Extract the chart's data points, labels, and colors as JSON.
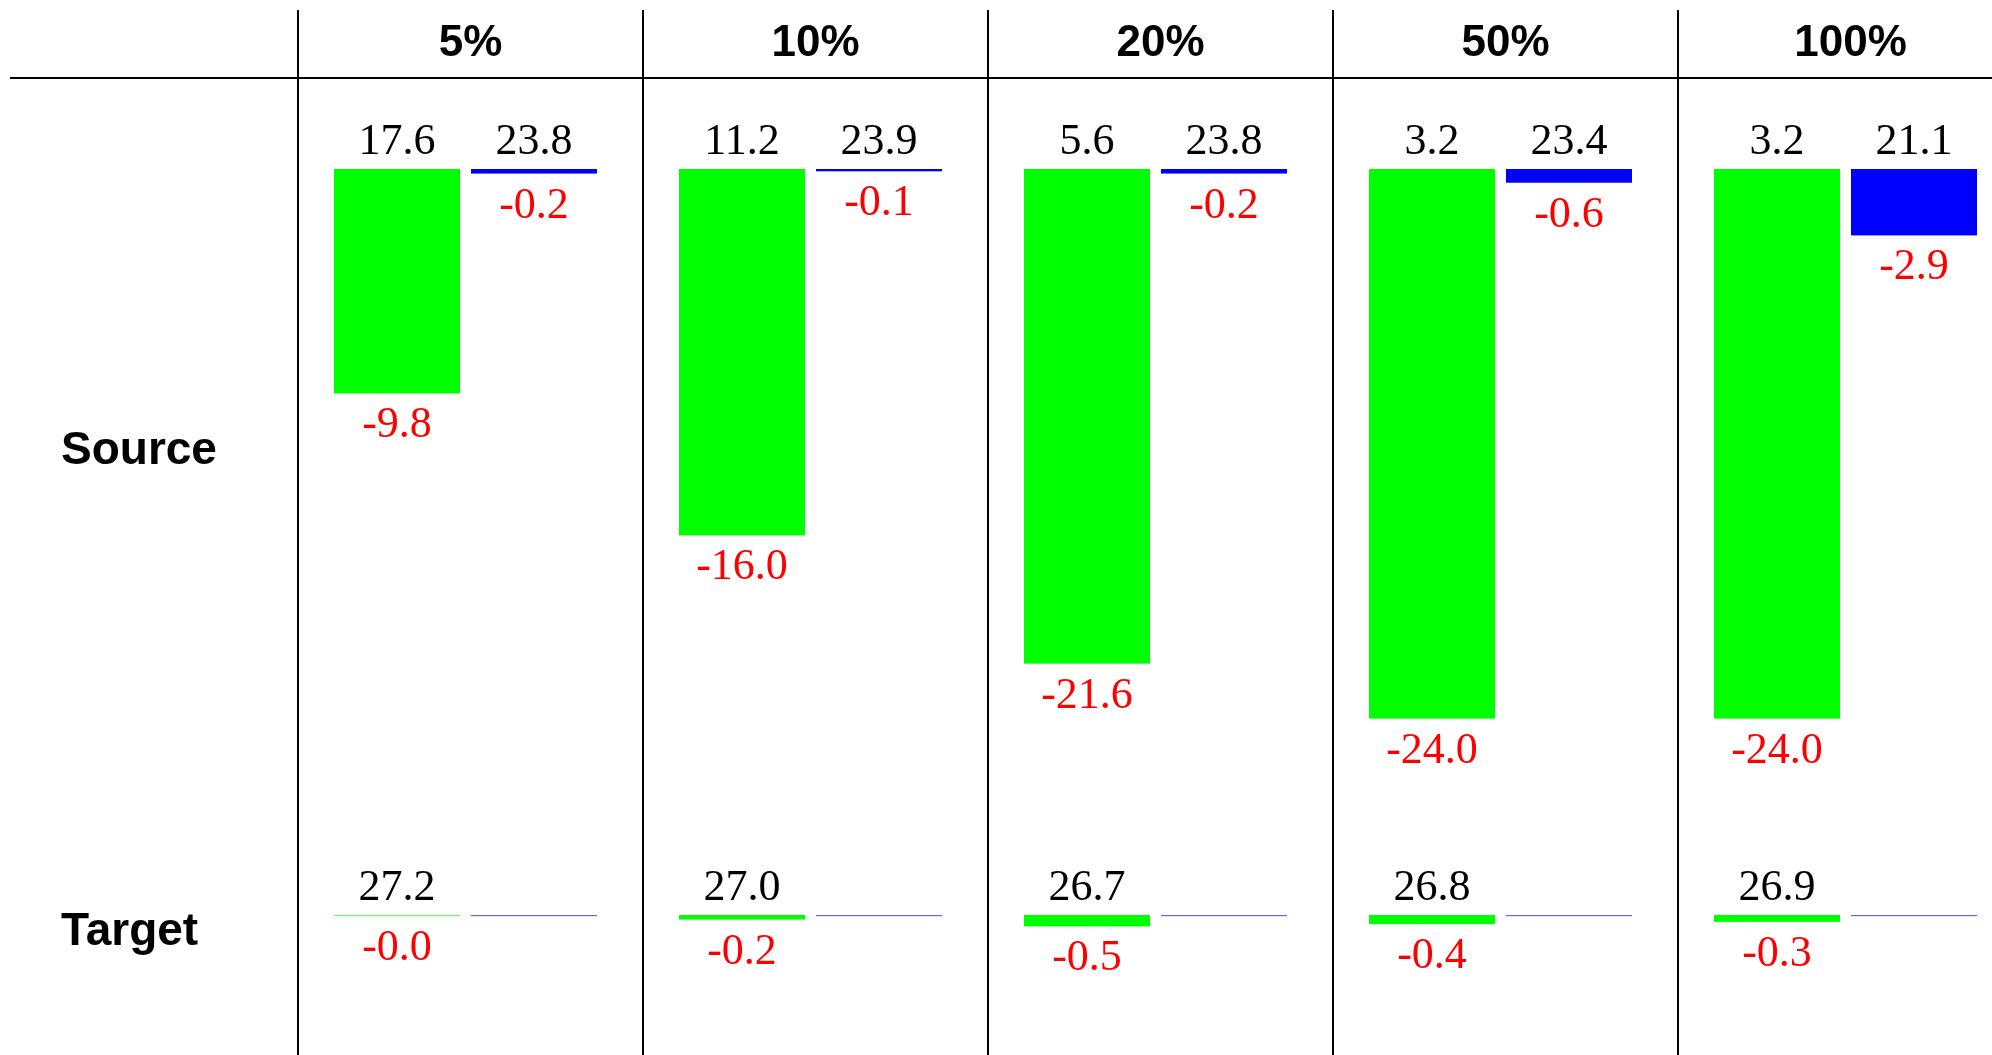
{
  "chart_data": [
    {
      "type": "bar",
      "title": "Source",
      "categories": [
        "5%",
        "10%",
        "20%",
        "50%",
        "100%"
      ],
      "tick_labels": "x",
      "series": [
        {
          "color": "#00ff00",
          "values": [
            -9.8,
            -16.0,
            -21.6,
            -24.0,
            -24.0
          ],
          "value_labels": [
            "-9.8",
            "-16.0",
            "-21.6",
            "-24.0",
            "-24.0"
          ]
        },
        {
          "color": "#0000ff",
          "values": [
            -0.2,
            -0.1,
            -0.2,
            -0.6,
            -2.9
          ],
          "value_labels": [
            "-0.2",
            "-0.1",
            "-0.2",
            "-0.6",
            "-2.9"
          ]
        }
      ],
      "annotations": [
        {
          "text": "17.6",
          "x": "5%",
          "y": 0
        },
        {
          "text": "23.8",
          "x": "5%",
          "y": 0
        },
        {
          "text": "11.2",
          "x": "10%",
          "y": 0
        },
        {
          "text": "23.9",
          "x": "10%",
          "y": 0
        },
        {
          "text": "5.6",
          "x": "20%",
          "y": 0
        },
        {
          "text": "23.8",
          "x": "20%",
          "y": 0
        },
        {
          "text": "3.2",
          "x": "50%",
          "y": 0
        },
        {
          "text": "23.4",
          "x": "50%",
          "y": 0
        },
        {
          "text": "3.2",
          "x": "100%",
          "y": 0
        },
        {
          "text": "21.1",
          "x": "100%",
          "y": 0
        }
      ]
    },
    {
      "type": "bar",
      "title": "Target",
      "categories": [
        "5%",
        "10%",
        "20%",
        "50%",
        "100%"
      ],
      "tick_labels": false,
      "series": [
        {
          "color": "#00ff00",
          "values": [
            0,
            -0.2,
            -0.5,
            -0.4,
            -0.3
          ],
          "value_labels": [
            "-0.0",
            "-0.2",
            "-0.5",
            "-0.4",
            "-0.3"
          ]
        },
        {
          "color": "#0000ff",
          "values": [
            0,
            0,
            0,
            0,
            0
          ],
          "value_labels": [
            null,
            null,
            null,
            null,
            null
          ]
        }
      ],
      "annotations": [
        {
          "text": "27.2",
          "x": "5%",
          "y": 0
        },
        {
          "text": "27.0",
          "x": "10%",
          "y": 0
        },
        {
          "text": "26.7",
          "x": "20%",
          "y": 0
        },
        {
          "text": "26.8",
          "x": "50%",
          "y": 0
        },
        {
          "text": "26.9",
          "x": "100%",
          "y": 0
        }
      ]
    }
  ]
}
